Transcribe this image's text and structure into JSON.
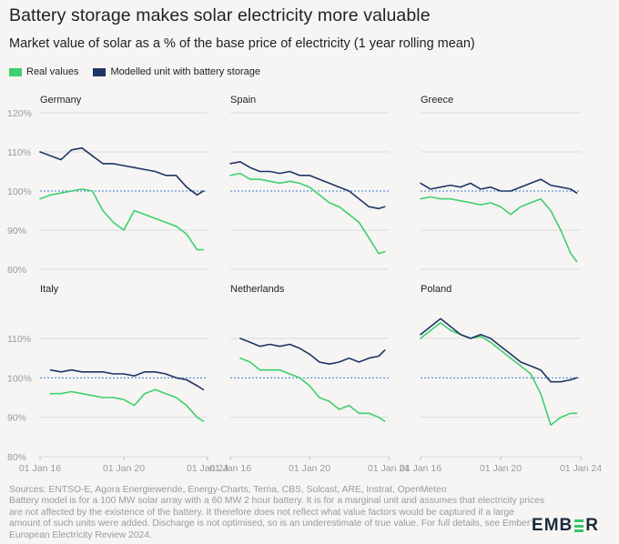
{
  "title": "Battery storage makes solar electricity more valuable",
  "subtitle": "Market value of solar as a % of the base price of electricity (1 year rolling mean)",
  "legend": {
    "real": {
      "label": "Real values",
      "color": "#3ecf6f"
    },
    "modelled": {
      "label": "Modelled unit with battery storage",
      "color": "#1f3566"
    }
  },
  "footer": {
    "line1": "Sources: ENTSO-E, Agora Energiewende, Energy-Charts, Terna, CBS, Solcast, ARE, Instrat, OpenMeteo",
    "line2": "Battery model is for a 100 MW solar array with a 60 MW 2 hour battery. It is for a marginal unit and assumes that electricity prices are not affected by the existence of the battery. It therefore does not reflect what value factors would be captured if a large amount of such units were added. Discharge is not optimised, so is an underestimate of true value. For full details, see Ember's European Electricity Review 2024."
  },
  "logo": {
    "text": "EMBER"
  },
  "chart_data": {
    "type": "line",
    "x_tick_labels": [
      "01 Jan 16",
      "01 Jan 20",
      "01 Jan 24"
    ],
    "x_ticks": [
      2016,
      2020,
      2024
    ],
    "xlim": [
      2016,
      2024
    ],
    "rows": [
      {
        "ylim": [
          80,
          120
        ],
        "yticks": [
          80,
          90,
          100,
          110,
          120
        ],
        "ytick_labels": [
          "80%",
          "90%",
          "100%",
          "110%",
          "120%"
        ]
      },
      {
        "ylim": [
          80,
          120
        ],
        "yticks": [
          80,
          90,
          100,
          110
        ],
        "ytick_labels": [
          "80%",
          "90%",
          "100%",
          "110%"
        ]
      }
    ],
    "reference_line": 100,
    "panels": [
      {
        "name": "Germany",
        "row": 0,
        "col": 0,
        "series": [
          {
            "name": "Real values",
            "x": [
              2016,
              2016.5,
              2017,
              2017.5,
              2018,
              2018.5,
              2019,
              2019.5,
              2020,
              2020.5,
              2021,
              2021.5,
              2022,
              2022.5,
              2023,
              2023.5,
              2023.8
            ],
            "y": [
              98,
              99,
              99.5,
              100,
              100.5,
              100,
              95,
              92,
              90,
              95,
              94,
              93,
              92,
              91,
              89,
              85,
              85
            ]
          },
          {
            "name": "Modelled unit with battery storage",
            "x": [
              2016,
              2016.5,
              2017,
              2017.5,
              2018,
              2018.5,
              2019,
              2019.5,
              2020,
              2020.5,
              2021,
              2021.5,
              2022,
              2022.5,
              2023,
              2023.5,
              2023.8
            ],
            "y": [
              110,
              109,
              108,
              110.5,
              111,
              109,
              107,
              107,
              106.5,
              106,
              105.5,
              105,
              104,
              104,
              101,
              99,
              100
            ]
          }
        ]
      },
      {
        "name": "Spain",
        "row": 0,
        "col": 1,
        "series": [
          {
            "name": "Real values",
            "x": [
              2016,
              2016.5,
              2017,
              2017.5,
              2018,
              2018.5,
              2019,
              2019.5,
              2020,
              2020.5,
              2021,
              2021.5,
              2022,
              2022.5,
              2023,
              2023.5,
              2023.8
            ],
            "y": [
              104,
              104.5,
              103,
              103,
              102.5,
              102,
              102.5,
              102,
              101,
              99,
              97,
              96,
              94,
              92,
              88,
              84,
              84.5
            ]
          },
          {
            "name": "Modelled unit with battery storage",
            "x": [
              2016,
              2016.5,
              2017,
              2017.5,
              2018,
              2018.5,
              2019,
              2019.5,
              2020,
              2020.5,
              2021,
              2021.5,
              2022,
              2022.5,
              2023,
              2023.5,
              2023.8
            ],
            "y": [
              107,
              107.5,
              106,
              105,
              105,
              104.5,
              105,
              104,
              104,
              103,
              102,
              101,
              100,
              98,
              96,
              95.5,
              96
            ]
          }
        ]
      },
      {
        "name": "Greece",
        "row": 0,
        "col": 2,
        "series": [
          {
            "name": "Real values",
            "x": [
              2016,
              2016.5,
              2017,
              2017.5,
              2018,
              2018.5,
              2019,
              2019.5,
              2020,
              2020.5,
              2021,
              2021.5,
              2022,
              2022.5,
              2023,
              2023.5,
              2023.8
            ],
            "y": [
              98,
              98.5,
              98,
              98,
              97.5,
              97,
              96.5,
              97,
              96,
              94,
              96,
              97,
              98,
              95,
              90,
              84,
              82
            ]
          },
          {
            "name": "Modelled unit with battery storage",
            "x": [
              2016,
              2016.5,
              2017,
              2017.5,
              2018,
              2018.5,
              2019,
              2019.5,
              2020,
              2020.5,
              2021,
              2021.5,
              2022,
              2022.5,
              2023,
              2023.5,
              2023.8
            ],
            "y": [
              102,
              100.5,
              101,
              101.5,
              101,
              102,
              100.5,
              101,
              100,
              100,
              101,
              102,
              103,
              101.5,
              101,
              100.5,
              99.5
            ]
          }
        ]
      },
      {
        "name": "Italy",
        "row": 1,
        "col": 0,
        "series": [
          {
            "name": "Real values",
            "x": [
              2016.5,
              2017,
              2017.5,
              2018,
              2018.5,
              2019,
              2019.5,
              2020,
              2020.5,
              2021,
              2021.5,
              2022,
              2022.5,
              2023,
              2023.5,
              2023.8
            ],
            "y": [
              96,
              96,
              96.5,
              96,
              95.5,
              95,
              95,
              94.5,
              93,
              96,
              97,
              96,
              95,
              93,
              90,
              89
            ]
          },
          {
            "name": "Modelled unit with battery storage",
            "x": [
              2016.5,
              2017,
              2017.5,
              2018,
              2018.5,
              2019,
              2019.5,
              2020,
              2020.5,
              2021,
              2021.5,
              2022,
              2022.5,
              2023,
              2023.5,
              2023.8
            ],
            "y": [
              102,
              101.5,
              102,
              101.5,
              101.5,
              101.5,
              101,
              101,
              100.5,
              101.5,
              101.5,
              101,
              100,
              99.5,
              98,
              97
            ]
          }
        ]
      },
      {
        "name": "Netherlands",
        "row": 1,
        "col": 1,
        "series": [
          {
            "name": "Real values",
            "x": [
              2016.5,
              2017,
              2017.5,
              2018,
              2018.5,
              2019,
              2019.5,
              2020,
              2020.5,
              2021,
              2021.5,
              2022,
              2022.5,
              2023,
              2023.5,
              2023.8
            ],
            "y": [
              105,
              104,
              102,
              102,
              102,
              101,
              100,
              98,
              95,
              94,
              92,
              93,
              91,
              91,
              90,
              89
            ]
          },
          {
            "name": "Modelled unit with battery storage",
            "x": [
              2016.5,
              2017,
              2017.5,
              2018,
              2018.5,
              2019,
              2019.5,
              2020,
              2020.5,
              2021,
              2021.5,
              2022,
              2022.5,
              2023,
              2023.5,
              2023.8
            ],
            "y": [
              110,
              109,
              108,
              108.5,
              108,
              108.5,
              107.5,
              106,
              104,
              103.5,
              104,
              105,
              104,
              105,
              105.5,
              107
            ]
          }
        ]
      },
      {
        "name": "Poland",
        "row": 1,
        "col": 2,
        "series": [
          {
            "name": "Real values",
            "x": [
              2016,
              2016.5,
              2017,
              2017.5,
              2018,
              2018.5,
              2019,
              2019.5,
              2020,
              2020.5,
              2021,
              2021.5,
              2022,
              2022.5,
              2023,
              2023.5,
              2023.8
            ],
            "y": [
              110,
              112,
              114,
              112,
              111,
              110,
              110.5,
              109,
              107,
              105,
              103,
              101,
              96,
              88,
              90,
              91,
              91
            ]
          },
          {
            "name": "Modelled unit with battery storage",
            "x": [
              2016,
              2016.5,
              2017,
              2017.5,
              2018,
              2018.5,
              2019,
              2019.5,
              2020,
              2020.5,
              2021,
              2021.5,
              2022,
              2022.5,
              2023,
              2023.5,
              2023.8
            ],
            "y": [
              111,
              113,
              115,
              113,
              111,
              110,
              111,
              110,
              108,
              106,
              104,
              103,
              102,
              99,
              99,
              99.5,
              100
            ]
          }
        ]
      }
    ]
  }
}
